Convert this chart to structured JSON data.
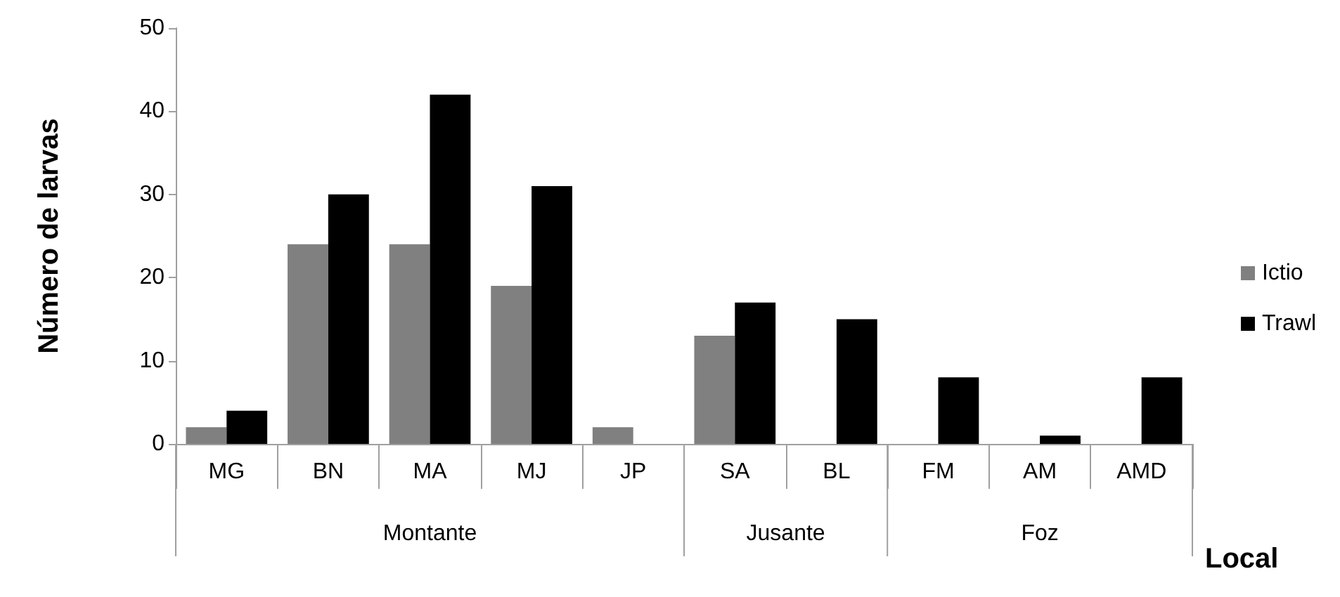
{
  "chart_data": {
    "type": "bar",
    "xlabel": "Local",
    "ylabel": "Número de larvas",
    "categories": [
      "MG",
      "BN",
      "MA",
      "MJ",
      "JP",
      "SA",
      "BL",
      "FM",
      "AM",
      "AMD"
    ],
    "series": [
      {
        "name": "Ictio",
        "color": "#808080",
        "values": [
          2,
          24,
          24,
          19,
          2,
          13,
          0,
          0,
          0,
          0
        ]
      },
      {
        "name": "Trawl",
        "color": "#000000",
        "values": [
          4,
          30,
          42,
          31,
          0,
          17,
          15,
          8,
          1,
          8
        ]
      }
    ],
    "ylim": [
      0,
      50
    ],
    "yticks": [
      0,
      10,
      20,
      30,
      40,
      50
    ],
    "grid": false,
    "legend": "right",
    "annotations": [
      "Montante",
      "Jusante",
      "Foz"
    ]
  }
}
